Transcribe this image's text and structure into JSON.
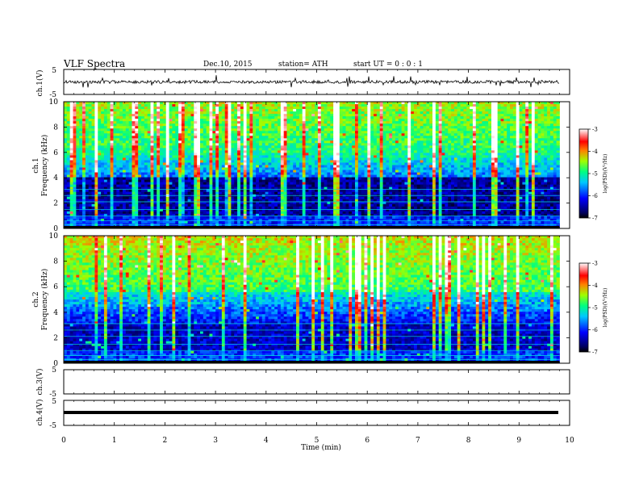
{
  "header": {
    "title": "VLF  Spectra",
    "date": "Dec.10, 2015",
    "station": "station= ATH",
    "start_ut": "start  UT  =    0 : 0  : 1"
  },
  "chart_data": [
    {
      "type": "line",
      "name": "ch1-waveform",
      "ylabel": "ch.1(V)",
      "yticks": [
        "5",
        "-5"
      ],
      "ylim": [
        -5,
        5
      ],
      "baseline": 0,
      "xlim": [
        0,
        9.8
      ]
    },
    {
      "type": "heatmap",
      "name": "ch1-spectrogram",
      "ylabel_top": "ch.1",
      "ylabel": "Frequency  (kHz)",
      "ylim": [
        0,
        10
      ],
      "yticks": [
        "0",
        "2",
        "4",
        "6",
        "8",
        "10"
      ],
      "xlim": [
        0,
        9.8
      ],
      "colorbar": {
        "label": "log(PSD)(V²/Hz)",
        "range": [
          -7,
          -3
        ],
        "ticks": [
          "-3",
          "-4",
          "-5",
          "-6",
          "-7"
        ]
      }
    },
    {
      "type": "heatmap",
      "name": "ch2-spectrogram",
      "ylabel_top": "ch.2",
      "ylabel": "Frequency  (kHz)",
      "ylim": [
        0,
        10
      ],
      "yticks": [
        "0",
        "2",
        "4",
        "6",
        "8",
        "10"
      ],
      "xlim": [
        0,
        9.8
      ],
      "colorbar": {
        "label": "log(PSD)(V²/Hz)",
        "range": [
          -7,
          -3
        ],
        "ticks": [
          "-3",
          "-4",
          "-5",
          "-6",
          "-7"
        ]
      }
    },
    {
      "type": "line",
      "name": "ch3-waveform",
      "ylabel": "ch.3(V)",
      "yticks": [
        "5",
        "-5"
      ],
      "ylim": [
        -5,
        5
      ]
    },
    {
      "type": "line",
      "name": "ch4-waveform",
      "ylabel": "ch.4(V)",
      "yticks": [
        "5",
        "-5"
      ],
      "ylim": [
        -5,
        5
      ],
      "baseline": 0,
      "xlim": [
        0,
        9.8
      ]
    }
  ],
  "xaxis": {
    "label": "Time  (min)",
    "range": [
      0,
      10
    ],
    "ticks": [
      "0",
      "1",
      "2",
      "3",
      "4",
      "5",
      "6",
      "7",
      "8",
      "9",
      "10"
    ]
  },
  "colors": {
    "low": "#000000",
    "mid_low": "#0000c8",
    "mid": "#00e0e0",
    "mid_high": "#80ff00",
    "high": "#ff0000",
    "top": "#ffffff"
  }
}
